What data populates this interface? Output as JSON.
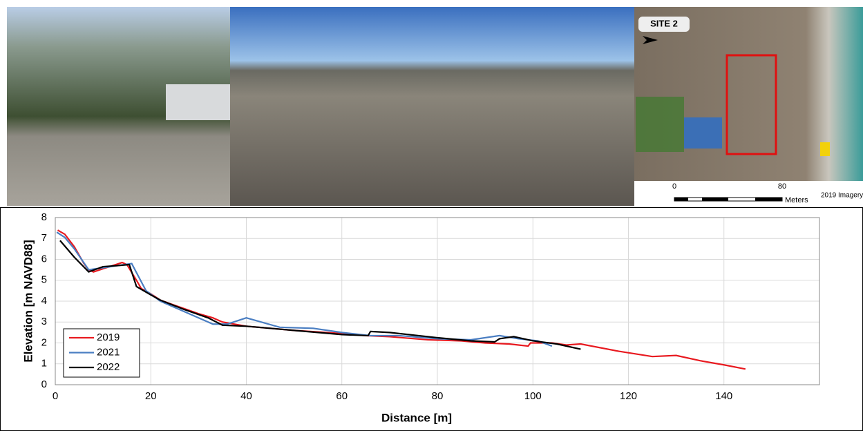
{
  "map": {
    "site_label": "SITE 2",
    "scale_start": "0",
    "scale_end": "80",
    "scale_unit": "Meters",
    "imagery": "2019 Imagery"
  },
  "chart_data": {
    "type": "line",
    "x_label": "Distance [m]",
    "y_label": "Elevation [m NAVD88]",
    "xlim": [
      0,
      160
    ],
    "ylim": [
      0,
      8
    ],
    "xticks": [
      0,
      20,
      40,
      60,
      80,
      100,
      120,
      140
    ],
    "yticks": [
      0,
      1,
      2,
      3,
      4,
      5,
      6,
      7,
      8
    ],
    "grid": true,
    "legend": "lower-left",
    "series": [
      {
        "name": "2019",
        "color": "#e8191f",
        "x": [
          0.5,
          2,
          4,
          6,
          7,
          8,
          10,
          12,
          14,
          15,
          17,
          18,
          20,
          22,
          25,
          30,
          33,
          35,
          40,
          50,
          60,
          65,
          70,
          78,
          85,
          90,
          95,
          99,
          99.5,
          104,
          107,
          110,
          118,
          125,
          130,
          135,
          140,
          144.5
        ],
        "values": [
          7.4,
          7.2,
          6.6,
          5.8,
          5.5,
          5.4,
          5.55,
          5.7,
          5.85,
          5.75,
          5.0,
          4.6,
          4.35,
          4.05,
          3.8,
          3.4,
          3.2,
          3.0,
          2.8,
          2.6,
          2.45,
          2.35,
          2.3,
          2.15,
          2.1,
          2.0,
          1.95,
          1.85,
          2.0,
          2.0,
          1.9,
          1.95,
          1.6,
          1.35,
          1.4,
          1.15,
          0.95,
          0.75
        ]
      },
      {
        "name": "2021",
        "color": "#4a7ec2",
        "x": [
          0.3,
          2,
          4,
          7,
          10,
          13,
          16,
          19,
          22,
          27,
          33,
          36,
          40,
          47,
          54,
          60,
          66,
          72,
          80,
          87,
          93,
          97,
          101,
          104
        ],
        "values": [
          7.3,
          7.05,
          6.5,
          5.5,
          5.6,
          5.7,
          5.8,
          4.5,
          4.0,
          3.5,
          2.9,
          2.9,
          3.2,
          2.75,
          2.7,
          2.5,
          2.35,
          2.35,
          2.2,
          2.15,
          2.35,
          2.2,
          2.1,
          1.85
        ]
      },
      {
        "name": "2022",
        "color": "#000000",
        "x": [
          1,
          4,
          7,
          10,
          13,
          15.5,
          17,
          20,
          22,
          27,
          32,
          35,
          40,
          50,
          60,
          65.5,
          66,
          70,
          80,
          87,
          92,
          93,
          96,
          100,
          105,
          110
        ],
        "values": [
          6.9,
          6.1,
          5.4,
          5.65,
          5.7,
          5.75,
          4.7,
          4.3,
          4.05,
          3.6,
          3.2,
          2.85,
          2.8,
          2.6,
          2.4,
          2.35,
          2.55,
          2.5,
          2.25,
          2.1,
          2.05,
          2.2,
          2.3,
          2.1,
          1.95,
          1.7
        ]
      }
    ]
  }
}
